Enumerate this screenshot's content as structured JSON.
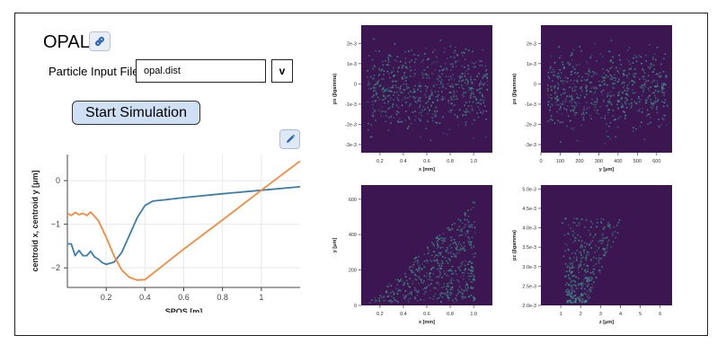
{
  "app": {
    "title": "OPAL",
    "link_icon": "link-icon",
    "edit_icon": "pencil-icon"
  },
  "input_form": {
    "file_label": "Particle Input File:",
    "file_value": "opal.dist",
    "dropdown_label": "v",
    "start_button": "Start Simulation"
  },
  "colors": {
    "series_x": "#3b7ea8",
    "series_y": "#f5893d",
    "heatmap_bg": "#3b1650",
    "heatmap_point": "#3f8f8c",
    "button_bg": "#cfe0f5"
  },
  "chart_data": [
    {
      "type": "line",
      "xlabel": "SPOS [m]",
      "ylabel": "centroid x, centroid y [μm]",
      "xlim": [
        0,
        1.2
      ],
      "ylim": [
        -2.45,
        0.6
      ],
      "xticks": [
        0.2,
        0.4,
        0.6,
        0.8,
        1.0
      ],
      "xtick_labels": [
        "0.2",
        "0.4",
        "0.6",
        "0.8",
        "1"
      ],
      "yticks": [
        0,
        -1,
        -2
      ],
      "ytick_labels": [
        "0",
        "−1",
        "−2"
      ],
      "grid": true,
      "series": [
        {
          "color_key": "series_x",
          "x": [
            0.0,
            0.02,
            0.04,
            0.06,
            0.08,
            0.1,
            0.12,
            0.14,
            0.16,
            0.18,
            0.2,
            0.24,
            0.28,
            0.32,
            0.36,
            0.4,
            0.44,
            0.5,
            0.6,
            0.8,
            1.0,
            1.2
          ],
          "y": [
            -1.45,
            -1.45,
            -1.72,
            -1.6,
            -1.72,
            -1.72,
            -1.62,
            -1.75,
            -1.8,
            -1.88,
            -1.92,
            -1.87,
            -1.65,
            -1.25,
            -0.85,
            -0.57,
            -0.47,
            -0.44,
            -0.39,
            -0.3,
            -0.22,
            -0.14
          ]
        },
        {
          "color_key": "series_y",
          "x": [
            0.0,
            0.02,
            0.04,
            0.06,
            0.08,
            0.1,
            0.12,
            0.14,
            0.16,
            0.2,
            0.24,
            0.28,
            0.32,
            0.36,
            0.4,
            0.42,
            0.5,
            0.6,
            0.8,
            1.0,
            1.2
          ],
          "y": [
            -0.75,
            -0.8,
            -0.73,
            -0.78,
            -0.75,
            -0.8,
            -0.72,
            -0.82,
            -0.92,
            -1.3,
            -1.72,
            -2.05,
            -2.22,
            -2.28,
            -2.27,
            -2.2,
            -1.92,
            -1.57,
            -0.9,
            -0.22,
            0.45
          ]
        }
      ]
    },
    {
      "type": "heatmap",
      "xlabel": "x [mm]",
      "ylabel": "px (βgamma)",
      "xlim": [
        0.04,
        1.16
      ],
      "ylim": [
        -0.0034,
        0.0029
      ],
      "xticks": [
        0.2,
        0.4,
        0.6,
        0.8,
        1.0
      ],
      "xtick_labels": [
        "0.2",
        "0.4",
        "0.6",
        "0.8",
        "1.0"
      ],
      "yticks": [
        0.002,
        0.001,
        0,
        -0.001,
        -0.002,
        -0.003
      ],
      "ytick_labels": [
        "2e-3",
        "1e-3",
        "0",
        "-1e-3",
        "-2e-3",
        "-3e-3"
      ]
    },
    {
      "type": "heatmap",
      "xlabel": "y [μm]",
      "ylabel": "px (βgamma)",
      "xlim": [
        0,
        680
      ],
      "ylim": [
        -0.0034,
        0.0029
      ],
      "xticks": [
        0,
        100,
        200,
        300,
        400,
        500,
        600
      ],
      "xtick_labels": [
        "0",
        "100",
        "200",
        "300",
        "400",
        "500",
        "600"
      ],
      "yticks": [
        0.002,
        0.001,
        0,
        -0.001,
        -0.002,
        -0.003
      ],
      "ytick_labels": [
        "2e-3",
        "1e-3",
        "0",
        "-1e-3",
        "-2e-3",
        "-3e-3"
      ]
    },
    {
      "type": "heatmap",
      "xlabel": "x [mm]",
      "ylabel": "y [μm]",
      "xlim": [
        0.04,
        1.16
      ],
      "ylim": [
        0,
        680
      ],
      "xticks": [
        0.2,
        0.4,
        0.6,
        0.8,
        1.0
      ],
      "xtick_labels": [
        "0.2",
        "0.4",
        "0.6",
        "0.8",
        "1.0"
      ],
      "yticks": [
        0,
        200,
        400,
        600
      ],
      "ytick_labels": [
        "0",
        "200",
        "400",
        "600"
      ]
    },
    {
      "type": "heatmap",
      "xlabel": "z [μm]",
      "ylabel": "pz (βgamma)",
      "xlim": [
        0,
        6.6
      ],
      "ylim": [
        0.002,
        0.0051
      ],
      "xticks": [
        1,
        2,
        3,
        4,
        5,
        6
      ],
      "xtick_labels": [
        "1",
        "2",
        "3",
        "4",
        "5",
        "6"
      ],
      "yticks": [
        0.005,
        0.0045,
        0.004,
        0.0035,
        0.003,
        0.0025,
        0.002
      ],
      "ytick_labels": [
        "5.0e-3",
        "4.5e-3",
        "4.0e-3",
        "3.5e-3",
        "3.0e-3",
        "2.5e-3",
        "2.0e-3"
      ]
    }
  ]
}
